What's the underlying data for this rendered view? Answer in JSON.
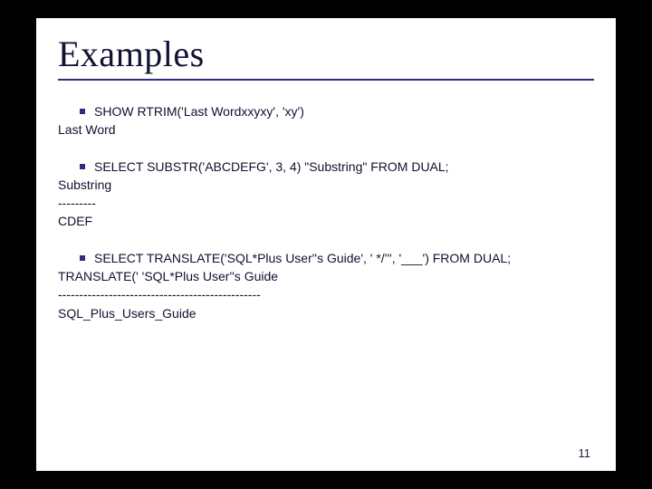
{
  "slide": {
    "title": "Examples",
    "page_number": "11",
    "title_color": "#111133",
    "rule_color": "#2c2c80",
    "text_color": "#101030",
    "bullet_color": "#2c2c80",
    "background": "#ffffff",
    "outer_background": "#000000",
    "title_fontsize": 40,
    "body_fontsize": 14,
    "blocks": [
      {
        "bullet": "SHOW RTRIM('Last Wordxxyxy', 'xy')",
        "lines": [
          "Last Word"
        ]
      },
      {
        "bullet": "SELECT SUBSTR('ABCDEFG', 3, 4) \"Substring\" FROM DUAL;",
        "lines": [
          "Substring",
          "---------",
          "CDEF"
        ]
      },
      {
        "bullet": "SELECT TRANSLATE('SQL*Plus User''s Guide', ' */''', '___') FROM DUAL;",
        "lines": [
          "TRANSLATE(' 'SQL*Plus User''s Guide",
          "------------------------------------------------",
          "SQL_Plus_Users_Guide"
        ]
      }
    ]
  }
}
